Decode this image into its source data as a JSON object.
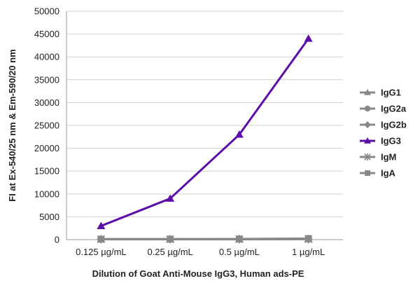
{
  "chart_data": {
    "type": "line",
    "title": "",
    "xlabel": "Dilution of Goat Anti-Mouse IgG3, Human ads-PE",
    "ylabel": "FI at Ex-540/25 nm & Em-590/20 nm",
    "categories": [
      "0.125 µg/mL",
      "0.25 µg/mL",
      "0.5 µg/mL",
      "1 µg/mL"
    ],
    "ylim": [
      0,
      50000
    ],
    "yticks": [
      0,
      5000,
      10000,
      15000,
      20000,
      25000,
      30000,
      35000,
      40000,
      45000,
      50000
    ],
    "grid": "horizontal",
    "legend_position": "right",
    "series": [
      {
        "name": "IgG1",
        "values": [
          100,
          100,
          120,
          150
        ],
        "color": "#888888",
        "marker": "triangle"
      },
      {
        "name": "IgG2a",
        "values": [
          100,
          100,
          110,
          130
        ],
        "color": "#888888",
        "marker": "circle"
      },
      {
        "name": "IgG2b",
        "values": [
          100,
          100,
          110,
          130
        ],
        "color": "#888888",
        "marker": "diamond"
      },
      {
        "name": "IgG3",
        "values": [
          3000,
          9000,
          23000,
          44000
        ],
        "color": "#5b0fa8",
        "marker": "triangle"
      },
      {
        "name": "IgM",
        "values": [
          100,
          100,
          100,
          120
        ],
        "color": "#888888",
        "marker": "star"
      },
      {
        "name": "IgA",
        "values": [
          100,
          120,
          150,
          250
        ],
        "color": "#888888",
        "marker": "square"
      }
    ]
  }
}
